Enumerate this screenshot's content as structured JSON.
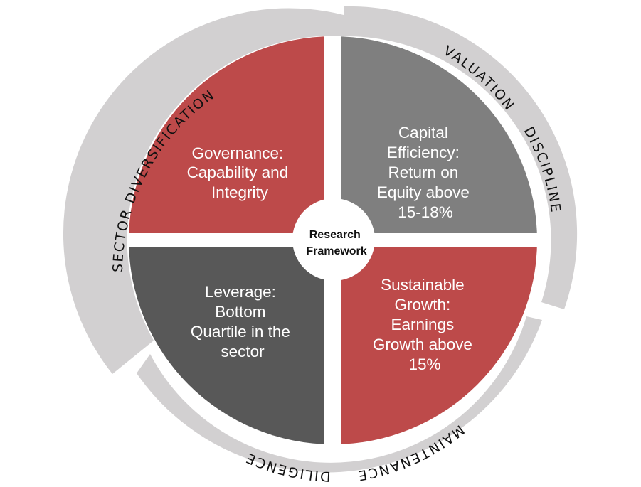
{
  "colors": {
    "ring": "#d2d0d1",
    "red": "#bd4a4a",
    "mid_gray": "#7f7f7f",
    "dark_gray": "#585858",
    "center_fill": "#ffffff",
    "text_light": "#ffffff",
    "text_dark": "#111111"
  },
  "center": {
    "lines": [
      "Research",
      "Framework"
    ]
  },
  "quadrants": {
    "top_left": {
      "lines": [
        "Governance:",
        "Capability and",
        "Integrity"
      ]
    },
    "top_right": {
      "lines": [
        "Capital",
        "Efficiency:",
        "Return on",
        "Equity above",
        "15-18%"
      ]
    },
    "bottom_left": {
      "lines": [
        "Leverage:",
        "Bottom",
        "Quartile in the",
        "sector"
      ]
    },
    "bottom_right": {
      "lines": [
        "Sustainable",
        "Growth:",
        "Earnings",
        "Growth above",
        "15%"
      ]
    }
  },
  "ring_labels": {
    "sector_diversification": [
      "SECTOR",
      "DIVERSIFICATION"
    ],
    "valuation_discipline": [
      "VALUATION",
      "DISCIPLINE"
    ],
    "maintenance_diligence": [
      "MAINTENANCE",
      "DILIGENCE"
    ]
  }
}
